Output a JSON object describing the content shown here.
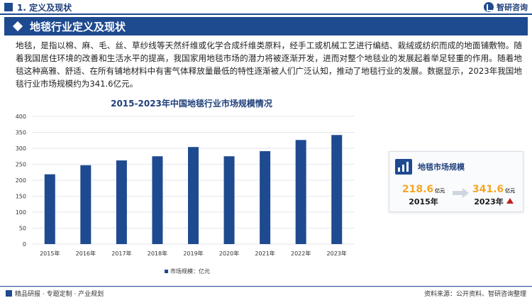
{
  "header": {
    "title": "1. 定义及现状",
    "brand": "智研咨询"
  },
  "section": {
    "title": "地毯行业定义及现状"
  },
  "body": {
    "paragraph": "地毯，是指以棉、麻、毛、丝、草纱线等天然纤维或化学合成纤维类原料，经手工或机械工艺进行编结、栽绒或纺织而成的地面铺敷物。随着我国居住环境的改善和生活水平的提高，我国家用地毯市场的潜力将被逐渐开发，进而对整个地毯业的发展起着举足轻重的作用。随着地毯这种高雅、舒适、在所有铺地材料中有害气体释放量最低的特性逐渐被人们广泛认知，推动了地毯行业的发展。数据显示，2023年我国地毯行业市场规模约为341.6亿元。"
  },
  "chart_data": {
    "type": "bar",
    "title": "2015-2023年中国地毯行业市场规模情况",
    "categories": [
      "2015年",
      "2016年",
      "2017年",
      "2018年",
      "2019年",
      "2020年",
      "2021年",
      "2022年",
      "2023年"
    ],
    "series": [
      {
        "name": "市场规模：亿元",
        "values": [
          218.6,
          247,
          262,
          275,
          304,
          275,
          291,
          326,
          341.6
        ]
      }
    ],
    "yticks": [
      "0",
      "50",
      "100",
      "150",
      "200",
      "250",
      "300",
      "350",
      "400"
    ],
    "ylim": [
      0,
      400
    ],
    "grid": true,
    "legend": "bottom-center",
    "color": "#1e4a8f"
  },
  "card": {
    "title": "地毯市场规模",
    "start_value": "218.6",
    "start_unit": "亿元",
    "start_year": "2015年",
    "end_value": "341.6",
    "end_unit": "亿元",
    "end_year": "2023年"
  },
  "footer": {
    "left": "精品研报 · 专题定制 · 产业规划",
    "right": "资料来源：公开资料、智研咨询整理"
  },
  "colors": {
    "primary": "#1e4a8f",
    "accent": "#f5a623",
    "up": "#c0201e"
  }
}
